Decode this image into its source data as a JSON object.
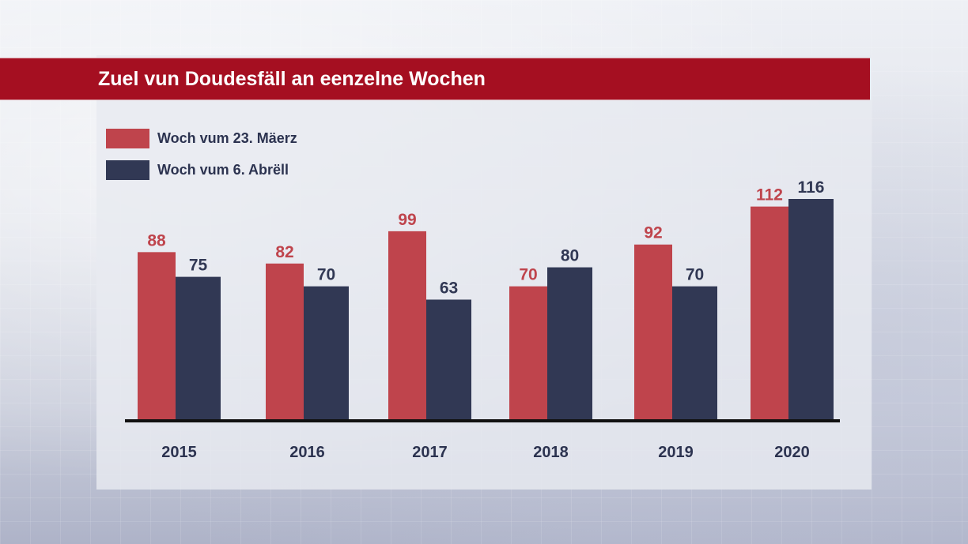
{
  "title": "Zuel vun Doudesfäll an eenzelne Wochen",
  "colors": {
    "title_bar": "#a50f21",
    "series_red": "#bf444c",
    "series_navy": "#313854",
    "axis": "#111111",
    "category_text": "#2c3350"
  },
  "legend": [
    {
      "label": "Woch vum 23. Mäerz",
      "color": "#bf444c"
    },
    {
      "label": "Woch vum 6. Abrëll",
      "color": "#313854"
    }
  ],
  "chart_data": {
    "type": "bar",
    "title": "Zuel vun Doudesfäll an eenzelne Wochen",
    "xlabel": "",
    "ylabel": "",
    "categories": [
      "2015",
      "2016",
      "2017",
      "2018",
      "2019",
      "2020"
    ],
    "series": [
      {
        "name": "Woch vum 23. Mäerz",
        "color": "#bf444c",
        "values": [
          88,
          82,
          99,
          70,
          92,
          112
        ]
      },
      {
        "name": "Woch vum 6. Abrëll",
        "color": "#313854",
        "values": [
          75,
          70,
          63,
          80,
          70,
          116
        ]
      }
    ],
    "ylim": [
      0,
      116
    ],
    "grid": false,
    "legend_position": "top-left",
    "data_labels": true
  }
}
